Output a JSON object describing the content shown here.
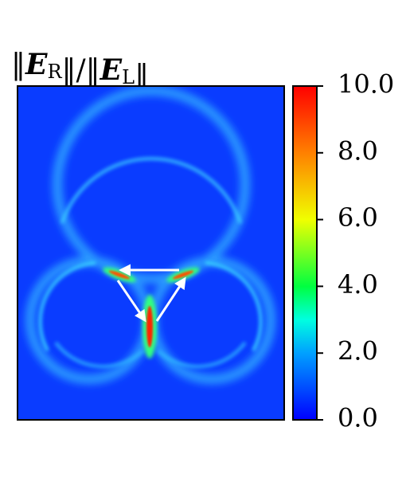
{
  "chart_data": {
    "type": "heatmap",
    "title": "‖ER‖/‖EL‖",
    "colorbar": {
      "lim": [
        0,
        10
      ],
      "ticks": [
        {
          "value": 0,
          "label": "0.0"
        },
        {
          "value": 2,
          "label": "2.0"
        },
        {
          "value": 4,
          "label": "4.0"
        },
        {
          "value": 6,
          "label": "6.0"
        },
        {
          "value": 8,
          "label": "8.0"
        },
        {
          "value": 10,
          "label": "10.0"
        }
      ]
    }
  }
}
